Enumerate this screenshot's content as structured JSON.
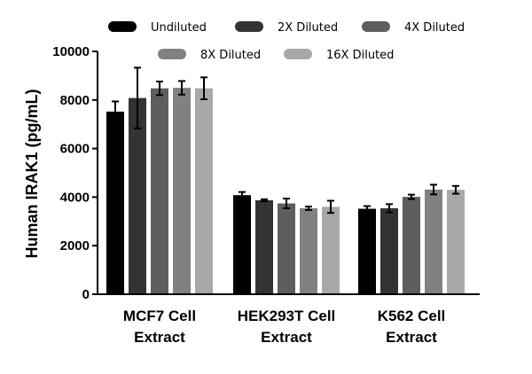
{
  "chart_data": {
    "type": "bar",
    "title": "",
    "xlabel": "",
    "ylabel": "Human IRAK1 (pg/mL)",
    "ylim": [
      0,
      10000
    ],
    "yticks": [
      "0",
      "2000",
      "4000",
      "6000",
      "8000",
      "10000"
    ],
    "ytick_values": [
      0,
      2000,
      4000,
      6000,
      8000,
      10000
    ],
    "grid": false,
    "legend_position": "top",
    "categories": [
      {
        "line1": "MCF7 Cell",
        "line2": "Extract"
      },
      {
        "line1": "HEK293T Cell",
        "line2": "Extract"
      },
      {
        "line1": "K562 Cell",
        "line2": "Extract"
      }
    ],
    "series": [
      {
        "name": "Undiluted",
        "color": "#000000",
        "values": [
          7520,
          4080,
          3520
        ],
        "errors": [
          420,
          130,
          110
        ]
      },
      {
        "name": "2X Diluted",
        "color": "#333333",
        "values": [
          8080,
          3870,
          3540
        ],
        "errors": [
          1250,
          40,
          170
        ]
      },
      {
        "name": "4X Diluted",
        "color": "#5e5e5e",
        "values": [
          8480,
          3740,
          4010
        ],
        "errors": [
          280,
          200,
          90
        ]
      },
      {
        "name": "8X Diluted",
        "color": "#818181",
        "values": [
          8500,
          3540,
          4310
        ],
        "errors": [
          280,
          70,
          200
        ]
      },
      {
        "name": "16X Diluted",
        "color": "#a8a8a8",
        "values": [
          8480,
          3600,
          4300
        ],
        "errors": [
          450,
          250,
          160
        ]
      }
    ]
  }
}
